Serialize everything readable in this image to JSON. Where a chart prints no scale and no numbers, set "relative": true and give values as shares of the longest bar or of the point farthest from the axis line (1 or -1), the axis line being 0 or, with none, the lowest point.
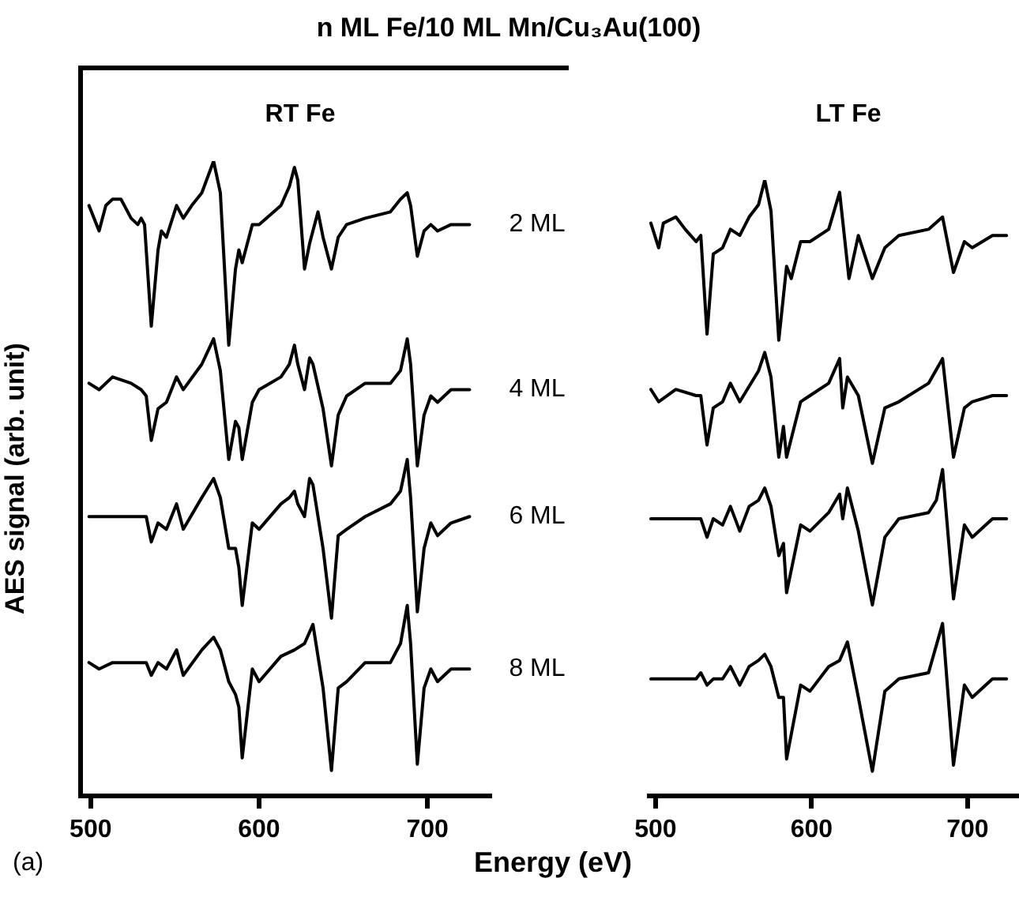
{
  "chart_data": [
    {
      "type": "line",
      "title": "n ML Fe/10 ML Mn/Cu₃Au(100)",
      "subtitle": "RT Fe",
      "xlabel": "Energy (eV)",
      "ylabel": "AES signal (arb. unit)",
      "annotations": [
        "(a)"
      ],
      "relative": true,
      "xlim": [
        494,
        737
      ],
      "xticks": [
        500,
        600,
        700
      ],
      "series": [
        {
          "name": "2 ML",
          "color": "#000000",
          "x": [
            499,
            505,
            509,
            513,
            518,
            524,
            528,
            530,
            532,
            536,
            540,
            542,
            545,
            551,
            555,
            560,
            566,
            573,
            577,
            582,
            586,
            588,
            590,
            596,
            600,
            613,
            618,
            621,
            623,
            627,
            630,
            635,
            638,
            643,
            647,
            652,
            663,
            678,
            684,
            688,
            690,
            694,
            698,
            702,
            706,
            714,
            725
          ],
          "values": [
            0.93,
            0.89,
            0.93,
            0.94,
            0.94,
            0.91,
            0.9,
            0.91,
            0.9,
            0.74,
            0.86,
            0.89,
            0.88,
            0.93,
            0.91,
            0.93,
            0.95,
            1.0,
            0.95,
            0.71,
            0.83,
            0.86,
            0.84,
            0.9,
            0.9,
            0.93,
            0.96,
            0.99,
            0.97,
            0.83,
            0.87,
            0.92,
            0.88,
            0.83,
            0.88,
            0.9,
            0.91,
            0.92,
            0.94,
            0.95,
            0.93,
            0.85,
            0.89,
            0.9,
            0.89,
            0.9,
            0.9
          ]
        },
        {
          "name": "4 ML",
          "color": "#000000",
          "x": [
            499,
            505,
            513,
            524,
            530,
            533,
            536,
            540,
            545,
            551,
            555,
            566,
            573,
            577,
            582,
            586,
            588,
            590,
            596,
            600,
            613,
            618,
            621,
            623,
            627,
            630,
            632,
            638,
            643,
            647,
            652,
            663,
            678,
            684,
            688,
            690,
            694,
            698,
            702,
            706,
            714,
            725
          ],
          "values": [
            0.65,
            0.64,
            0.66,
            0.65,
            0.64,
            0.63,
            0.56,
            0.61,
            0.62,
            0.66,
            0.64,
            0.68,
            0.72,
            0.67,
            0.53,
            0.59,
            0.58,
            0.53,
            0.62,
            0.64,
            0.66,
            0.68,
            0.71,
            0.68,
            0.64,
            0.69,
            0.68,
            0.61,
            0.52,
            0.6,
            0.63,
            0.65,
            0.65,
            0.67,
            0.72,
            0.68,
            0.52,
            0.6,
            0.63,
            0.62,
            0.64,
            0.64
          ]
        },
        {
          "name": "6 ML",
          "color": "#000000",
          "x": [
            499,
            505,
            513,
            524,
            530,
            533,
            536,
            540,
            545,
            551,
            555,
            566,
            573,
            577,
            582,
            586,
            588,
            590,
            596,
            600,
            613,
            618,
            621,
            623,
            627,
            630,
            632,
            638,
            643,
            647,
            652,
            663,
            678,
            684,
            688,
            690,
            694,
            698,
            702,
            706,
            714,
            725
          ],
          "values": [
            0.44,
            0.44,
            0.44,
            0.44,
            0.44,
            0.44,
            0.4,
            0.43,
            0.42,
            0.46,
            0.42,
            0.47,
            0.5,
            0.47,
            0.39,
            0.39,
            0.36,
            0.3,
            0.43,
            0.42,
            0.46,
            0.47,
            0.48,
            0.46,
            0.44,
            0.5,
            0.49,
            0.39,
            0.28,
            0.41,
            0.42,
            0.44,
            0.46,
            0.48,
            0.53,
            0.47,
            0.29,
            0.39,
            0.43,
            0.41,
            0.43,
            0.44
          ]
        },
        {
          "name": "8 ML",
          "color": "#000000",
          "x": [
            499,
            505,
            513,
            524,
            530,
            533,
            536,
            540,
            545,
            551,
            555,
            566,
            573,
            577,
            582,
            586,
            588,
            590,
            596,
            600,
            613,
            621,
            627,
            632,
            638,
            643,
            647,
            652,
            663,
            678,
            684,
            688,
            690,
            694,
            698,
            702,
            706,
            714,
            725
          ],
          "values": [
            0.21,
            0.2,
            0.21,
            0.21,
            0.21,
            0.21,
            0.19,
            0.21,
            0.2,
            0.23,
            0.19,
            0.23,
            0.25,
            0.23,
            0.18,
            0.16,
            0.14,
            0.06,
            0.2,
            0.18,
            0.22,
            0.23,
            0.24,
            0.27,
            0.17,
            0.04,
            0.17,
            0.18,
            0.21,
            0.21,
            0.24,
            0.3,
            0.24,
            0.05,
            0.17,
            0.2,
            0.18,
            0.2,
            0.2
          ]
        }
      ]
    },
    {
      "type": "line",
      "title": "LT Fe",
      "relative": true,
      "xlim": [
        496,
        733
      ],
      "xticks": [
        500,
        600,
        700
      ],
      "series": [
        {
          "color": "#000000",
          "x": [
            497,
            502,
            505,
            513,
            519,
            526,
            529,
            533,
            537,
            543,
            548,
            554,
            560,
            566,
            570,
            574,
            579,
            584,
            587,
            593,
            599,
            611,
            618,
            624,
            630,
            639,
            647,
            656,
            675,
            684,
            691,
            698,
            703,
            716,
            725
          ],
          "values": [
            0.93,
            0.89,
            0.93,
            0.94,
            0.92,
            0.9,
            0.91,
            0.75,
            0.88,
            0.89,
            0.92,
            0.91,
            0.94,
            0.96,
            1.0,
            0.95,
            0.74,
            0.86,
            0.84,
            0.9,
            0.9,
            0.92,
            0.98,
            0.84,
            0.91,
            0.84,
            0.89,
            0.91,
            0.92,
            0.94,
            0.85,
            0.9,
            0.89,
            0.91,
            0.91
          ]
        },
        {
          "color": "#000000",
          "x": [
            497,
            502,
            513,
            526,
            529,
            533,
            537,
            543,
            548,
            554,
            566,
            570,
            574,
            579,
            582,
            584,
            593,
            599,
            611,
            618,
            620,
            623,
            630,
            639,
            647,
            656,
            675,
            684,
            691,
            698,
            703,
            716,
            725
          ],
          "values": [
            0.66,
            0.64,
            0.66,
            0.65,
            0.65,
            0.57,
            0.63,
            0.64,
            0.67,
            0.64,
            0.69,
            0.72,
            0.68,
            0.55,
            0.6,
            0.55,
            0.64,
            0.65,
            0.67,
            0.71,
            0.63,
            0.68,
            0.65,
            0.54,
            0.63,
            0.64,
            0.67,
            0.71,
            0.55,
            0.63,
            0.64,
            0.65,
            0.65
          ]
        },
        {
          "color": "#000000",
          "x": [
            497,
            502,
            513,
            526,
            529,
            533,
            537,
            543,
            548,
            554,
            560,
            566,
            570,
            574,
            579,
            582,
            584,
            593,
            599,
            611,
            618,
            620,
            623,
            630,
            639,
            647,
            656,
            675,
            680,
            684,
            691,
            698,
            703,
            716,
            725
          ],
          "values": [
            0.45,
            0.45,
            0.45,
            0.45,
            0.45,
            0.42,
            0.45,
            0.44,
            0.47,
            0.43,
            0.47,
            0.48,
            0.5,
            0.47,
            0.39,
            0.41,
            0.33,
            0.44,
            0.43,
            0.46,
            0.49,
            0.45,
            0.5,
            0.43,
            0.31,
            0.42,
            0.45,
            0.46,
            0.48,
            0.53,
            0.32,
            0.44,
            0.42,
            0.45,
            0.45
          ]
        },
        {
          "color": "#000000",
          "x": [
            497,
            502,
            513,
            526,
            529,
            533,
            537,
            543,
            548,
            554,
            560,
            566,
            570,
            574,
            579,
            582,
            584,
            593,
            599,
            611,
            618,
            623,
            630,
            639,
            647,
            656,
            675,
            684,
            691,
            698,
            703,
            716,
            725
          ],
          "values": [
            0.19,
            0.19,
            0.19,
            0.19,
            0.2,
            0.18,
            0.19,
            0.19,
            0.21,
            0.18,
            0.21,
            0.22,
            0.23,
            0.21,
            0.16,
            0.16,
            0.06,
            0.18,
            0.17,
            0.21,
            0.22,
            0.25,
            0.16,
            0.04,
            0.17,
            0.19,
            0.2,
            0.28,
            0.05,
            0.18,
            0.16,
            0.19,
            0.19
          ]
        }
      ]
    }
  ]
}
